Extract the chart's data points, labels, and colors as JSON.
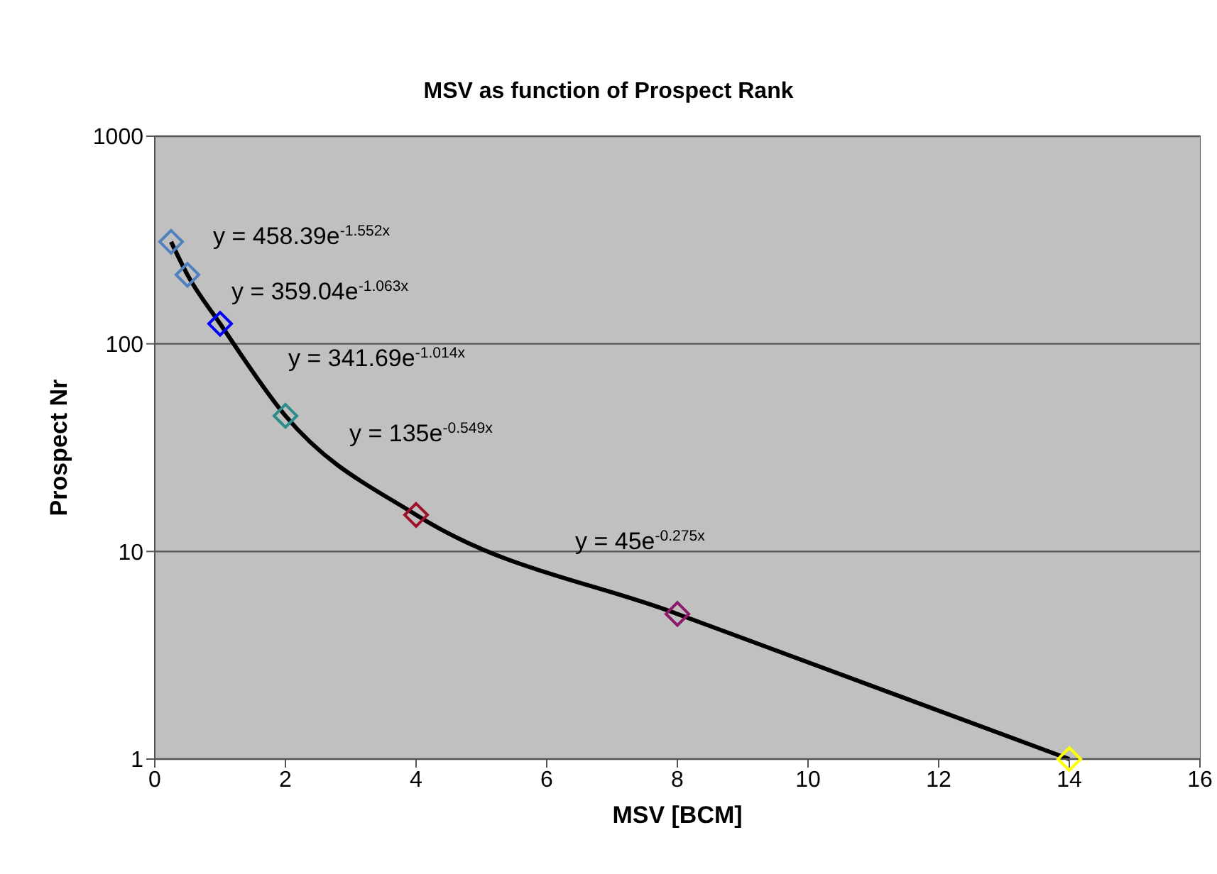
{
  "chart_data": {
    "type": "scatter",
    "title": "MSV as function of Prospect Rank",
    "xlabel": "MSV [BCM]",
    "ylabel": "Prospect Nr",
    "x": [
      0.25,
      0.5,
      1,
      2,
      4,
      8,
      14
    ],
    "series": [
      {
        "type": "line",
        "marker": "none",
        "line_style": "solid",
        "color": "#000000",
        "values": [
          310,
          215,
          125,
          45,
          15,
          5,
          1
        ]
      },
      {
        "marker": "diamond",
        "values": [
          310,
          215,
          125,
          45,
          15,
          5,
          1
        ],
        "colors": [
          "#4f81bd",
          "#4f81bd",
          "#0000ff",
          "#2e8b8b",
          "#a0102a",
          "#8b1a6b",
          "#ffff00"
        ]
      }
    ],
    "xlim": [
      0,
      16
    ],
    "xticks": [
      0,
      2,
      4,
      6,
      8,
      10,
      12,
      14,
      16
    ],
    "ylim": [
      1,
      1000
    ],
    "yticks": [
      1,
      10,
      100,
      1000
    ],
    "log": "y",
    "grid": "y",
    "legend": false,
    "annotations": [
      "y = 458.39e$^{-1.552x}$",
      "y = 359.04e$^{-1.063x}$",
      "y = 341.69e$^{-1.014x}$",
      "y = 135e$^{-0.549x}$",
      "y = 45e$^{-0.275x}$"
    ]
  }
}
